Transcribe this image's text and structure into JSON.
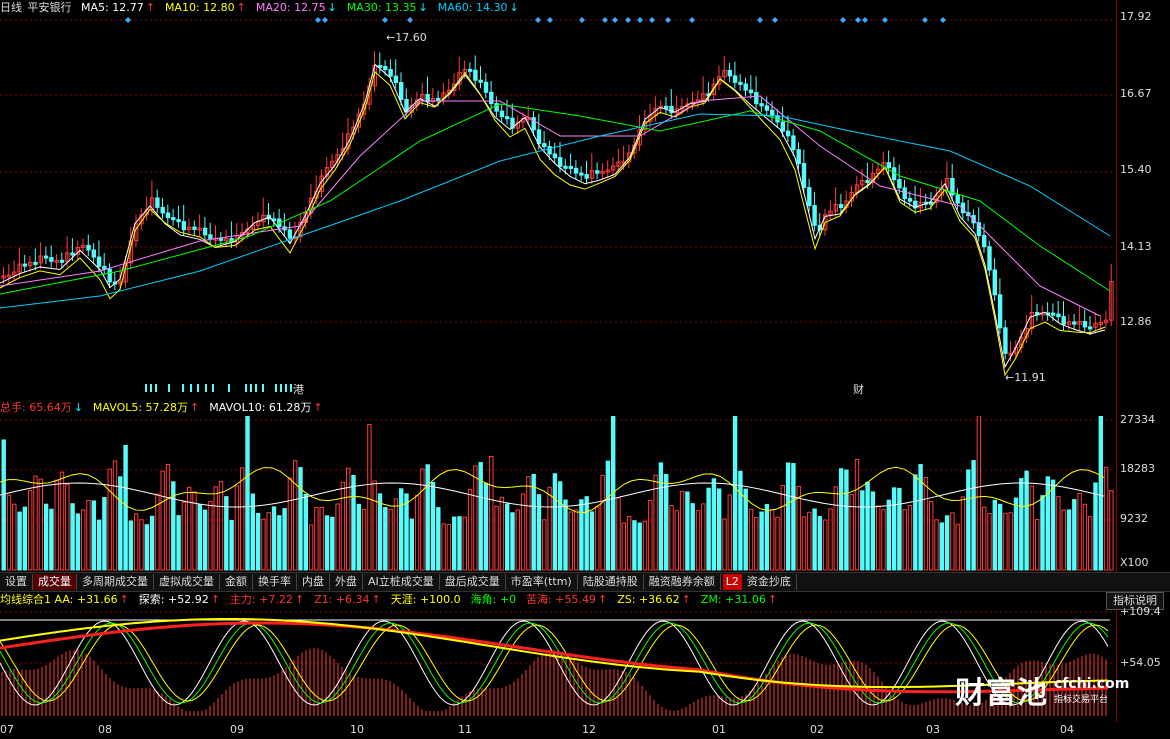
{
  "price_legend": {
    "period": "日线",
    "stock": "平安银行",
    "items": [
      {
        "text": "MA5: 12.77",
        "arrow": "↑",
        "color": "#ffffff",
        "arrow_color": "#ff3333"
      },
      {
        "text": "MA10: 12.80",
        "arrow": "↑",
        "color": "#ffff00",
        "arrow_color": "#ff3333"
      },
      {
        "text": "MA20: 12.75",
        "arrow": "↓",
        "color": "#ff80ff",
        "arrow_color": "#00ffff"
      },
      {
        "text": "MA30: 13.35",
        "arrow": "↓",
        "color": "#00ff00",
        "arrow_color": "#00ffff"
      },
      {
        "text": "MA60: 14.30",
        "arrow": "↓",
        "color": "#00ccff",
        "arrow_color": "#00ffff"
      }
    ]
  },
  "price_axis": [
    "17.92",
    "16.67",
    "15.40",
    "14.13",
    "12.86"
  ],
  "price_annotations": {
    "high": "17.60",
    "low": "11.91",
    "gang_marker": "港",
    "cai_marker": "财"
  },
  "volume_legend": {
    "items": [
      {
        "text": "总手: 65.64万",
        "arrow": "↓",
        "color": "#ff3333",
        "arrow_color": "#00ffff"
      },
      {
        "text": "MAVOL5: 57.28万",
        "arrow": "↑",
        "color": "#ffff00",
        "arrow_color": "#ff3333"
      },
      {
        "text": "MAVOL10: 61.28万",
        "arrow": "↑",
        "color": "#ffffff",
        "arrow_color": "#ff3333"
      }
    ]
  },
  "volume_axis": [
    "27334",
    "18283",
    "9232",
    "X100"
  ],
  "tabs": [
    "设置",
    "成交量",
    "多周期成交量",
    "虚拟成交量",
    "金额",
    "换手率",
    "内盘",
    "外盘",
    "AI立桩成交量",
    "盘后成交量",
    "市盈率(ttm)",
    "陆股通持股",
    "融资融券余额",
    "L2",
    "资金抄底"
  ],
  "active_tab": "成交量",
  "indicator_legend": {
    "items": [
      {
        "text": "均线综合1 AA: +31.66",
        "arrow": "↑",
        "color": "#ffff00"
      },
      {
        "text": "探索: +52.92",
        "arrow": "↑",
        "color": "#ffffff"
      },
      {
        "text": "主力: +7.22",
        "arrow": "↑",
        "color": "#ff3333"
      },
      {
        "text": "Z1: +6.34",
        "arrow": "↑",
        "color": "#ff3333"
      },
      {
        "text": "天涯: +100.0",
        "arrow": "",
        "color": "#ffff00"
      },
      {
        "text": "海角: +0",
        "arrow": "",
        "color": "#00ff00"
      },
      {
        "text": "苦海: +55.49",
        "arrow": "↑",
        "color": "#ff3333"
      },
      {
        "text": "ZS: +36.62",
        "arrow": "↑",
        "color": "#ffff00"
      },
      {
        "text": "ZM: +31.06",
        "arrow": "↑",
        "color": "#00ff00"
      }
    ]
  },
  "indicator_button": "指标说明",
  "indicator_axis": [
    "+109.4",
    "+54.05"
  ],
  "x_dates": [
    "07",
    "08",
    "09",
    "10",
    "11",
    "12",
    "01",
    "02",
    "03",
    "04"
  ],
  "logo": {
    "cn": "财富池",
    "domain": "cfchi.com",
    "tagline": "指标交易平台"
  },
  "colors": {
    "up": "#ff3b3b",
    "down": "#54fcfc",
    "background": "#000000",
    "grid": "#8b0000"
  }
}
